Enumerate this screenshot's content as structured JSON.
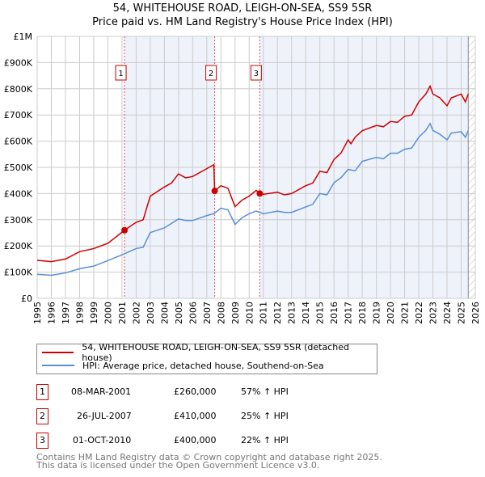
{
  "chart_data": {
    "type": "line",
    "title": "54, WHITEHOUSE ROAD, LEIGH-ON-SEA, SS9 5SR",
    "subtitle": "Price paid vs. HM Land Registry's House Price Index (HPI)",
    "xlim": [
      1995,
      2026
    ],
    "ylim": [
      0,
      1000000
    ],
    "y_ticks": [
      {
        "v": 0,
        "label": "£0"
      },
      {
        "v": 100000,
        "label": "£100K"
      },
      {
        "v": 200000,
        "label": "£200K"
      },
      {
        "v": 300000,
        "label": "£300K"
      },
      {
        "v": 400000,
        "label": "£400K"
      },
      {
        "v": 500000,
        "label": "£500K"
      },
      {
        "v": 600000,
        "label": "£600K"
      },
      {
        "v": 700000,
        "label": "£700K"
      },
      {
        "v": 800000,
        "label": "£800K"
      },
      {
        "v": 900000,
        "label": "£900K"
      },
      {
        "v": 1000000,
        "label": "£1M"
      }
    ],
    "x_ticks": [
      "1995",
      "1996",
      "1997",
      "1998",
      "1999",
      "2000",
      "2001",
      "2002",
      "2003",
      "2004",
      "2005",
      "2006",
      "2007",
      "2008",
      "2009",
      "2010",
      "2011",
      "2012",
      "2013",
      "2014",
      "2015",
      "2016",
      "2017",
      "2018",
      "2019",
      "2020",
      "2021",
      "2022",
      "2023",
      "2024",
      "2025",
      "2026"
    ],
    "grid": true,
    "series": [
      {
        "name": "54, WHITEHOUSE ROAD, LEIGH-ON-SEA, SS9 5SR (detached house)",
        "color": "#cc0000",
        "x": [
          1995,
          1996,
          1997,
          1998,
          1999,
          2000,
          2001.18,
          2002,
          2002.5,
          2003,
          2004,
          2004.5,
          2005,
          2005.5,
          2006,
          2007,
          2007.5,
          2007.56,
          2008,
          2008.5,
          2009,
          2009.5,
          2010,
          2010.5,
          2010.75,
          2011,
          2012,
          2012.5,
          2013,
          2014,
          2014.5,
          2015,
          2015.5,
          2016,
          2016.5,
          2017,
          2017.2,
          2017.5,
          2018,
          2019,
          2019.5,
          2020,
          2020.5,
          2021,
          2021.5,
          2022,
          2022.5,
          2022.8,
          2023,
          2023.5,
          2024,
          2024.3,
          2025,
          2025.3,
          2025.5
        ],
        "y": [
          145000,
          140000,
          150000,
          178000,
          190000,
          210000,
          260000,
          290000,
          300000,
          390000,
          425000,
          440000,
          475000,
          460000,
          465000,
          495000,
          510000,
          410000,
          430000,
          420000,
          350000,
          375000,
          390000,
          412000,
          400000,
          397000,
          405000,
          395000,
          400000,
          430000,
          440000,
          485000,
          480000,
          530000,
          555000,
          605000,
          590000,
          615000,
          640000,
          660000,
          655000,
          675000,
          672000,
          695000,
          700000,
          750000,
          780000,
          810000,
          780000,
          765000,
          735000,
          765000,
          780000,
          750000,
          780000
        ]
      },
      {
        "name": "HPI: Average price, detached house, Southend-on-Sea",
        "color": "#5b8fd4",
        "x": [
          1995,
          1996,
          1997,
          1998,
          1999,
          2000,
          2001,
          2002,
          2002.5,
          2003,
          2004,
          2005,
          2005.5,
          2006,
          2007,
          2007.5,
          2008,
          2008.5,
          2009,
          2009.5,
          2010,
          2010.5,
          2011,
          2012,
          2012.5,
          2013,
          2014,
          2014.5,
          2015,
          2015.5,
          2016,
          2016.5,
          2017,
          2017.5,
          2018,
          2019,
          2019.5,
          2020,
          2020.5,
          2021,
          2021.5,
          2022,
          2022.5,
          2022.8,
          2023,
          2023.5,
          2024,
          2024.3,
          2025,
          2025.3,
          2025.5
        ],
        "y": [
          92000,
          88000,
          97000,
          113000,
          123000,
          144000,
          166000,
          190000,
          195000,
          251000,
          269000,
          303000,
          297000,
          297000,
          316000,
          323000,
          344000,
          338000,
          282000,
          308000,
          323000,
          333000,
          323000,
          333000,
          328000,
          328000,
          349000,
          359000,
          400000,
          395000,
          441000,
          461000,
          492000,
          487000,
          523000,
          538000,
          533000,
          554000,
          554000,
          569000,
          574000,
          615000,
          641000,
          667000,
          641000,
          626000,
          605000,
          631000,
          636000,
          615000,
          641000
        ]
      }
    ],
    "sales": [
      {
        "id": "1",
        "x": 2001.18,
        "price": 260000
      },
      {
        "id": "2",
        "x": 2007.56,
        "price": 410000
      },
      {
        "id": "3",
        "x": 2010.75,
        "price": 400000
      }
    ],
    "shaded": [
      [
        2001.18,
        2007.56
      ],
      [
        2010.75,
        2025.5
      ]
    ],
    "hatched_from": 2025.5,
    "legend_placement": "below"
  },
  "table": [
    {
      "id": "1",
      "date": "08-MAR-2001",
      "price": "£260,000",
      "hpi": "57% ↑ HPI"
    },
    {
      "id": "2",
      "date": "26-JUL-2007",
      "price": "£410,000",
      "hpi": "25% ↑ HPI"
    },
    {
      "id": "3",
      "date": "01-OCT-2010",
      "price": "£400,000",
      "hpi": "22% ↑ HPI"
    }
  ],
  "footer": {
    "line1": "Contains HM Land Registry data © Crown copyright and database right 2025.",
    "line2": "This data is licensed under the Open Government Licence v3.0."
  }
}
